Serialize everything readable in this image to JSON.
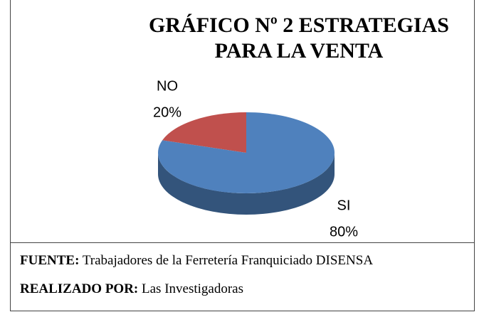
{
  "chart_data": {
    "type": "pie",
    "title": "GRÁFICO Nº 2 ESTRATEGIAS PARA LA VENTA",
    "categories": [
      "NO",
      "SI"
    ],
    "values": [
      20,
      80
    ],
    "value_labels": [
      "20%",
      "80%"
    ],
    "colors": [
      "#c0504d",
      "#4f81bd"
    ]
  },
  "footer": {
    "lines": [
      {
        "label": "FUENTE:",
        "text": "Trabajadores de la Ferretería Franquiciado DISENSA"
      },
      {
        "label": "REALIZADO POR:",
        "text": "Las Investigadoras"
      }
    ]
  }
}
